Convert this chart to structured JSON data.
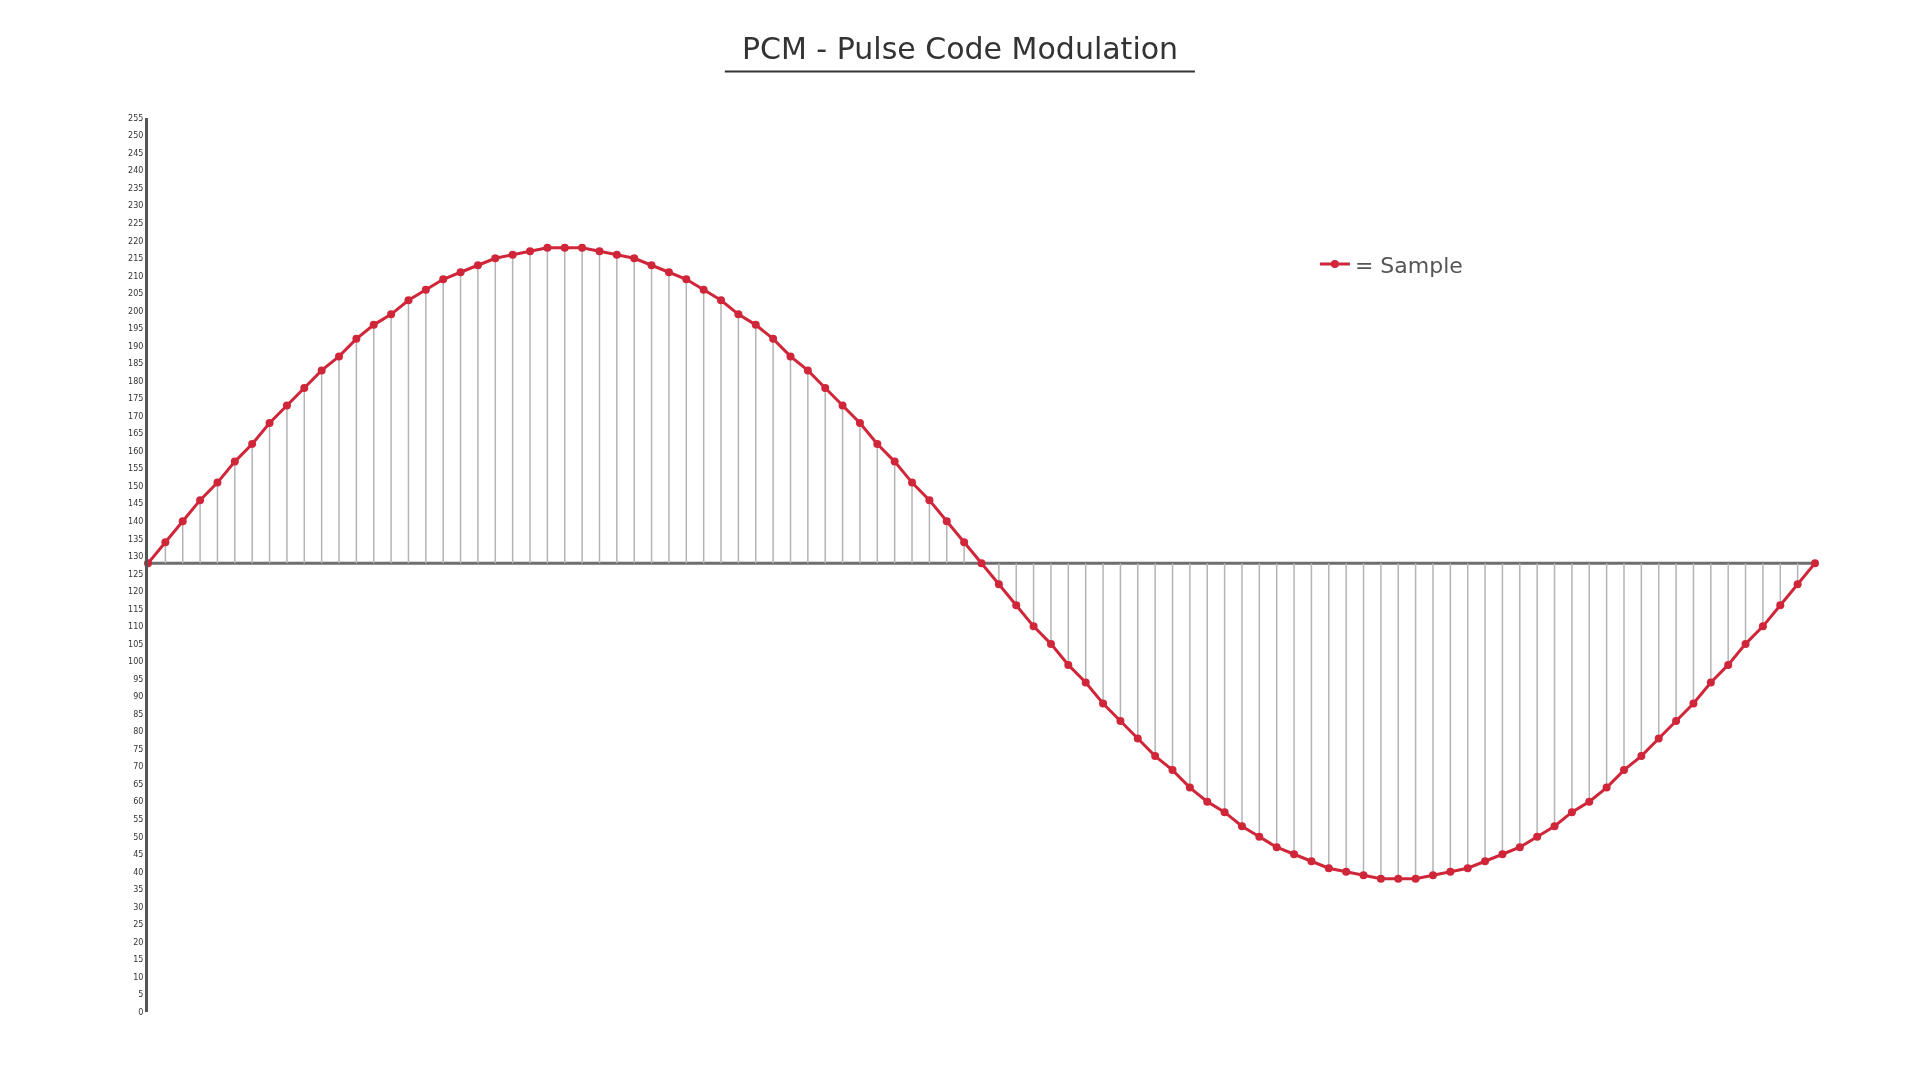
{
  "chart_data": {
    "type": "line",
    "title": "PCM - Pulse Code Modulation",
    "categories": [
      null,
      null,
      null,
      null,
      null,
      null,
      null,
      null,
      null,
      null,
      null,
      null,
      null,
      null,
      null,
      null,
      null,
      null,
      null,
      null,
      null,
      null,
      null,
      null,
      null,
      null,
      null,
      null,
      null,
      null,
      null,
      null,
      null,
      null,
      null,
      null,
      null,
      null,
      null,
      null,
      null,
      null,
      null,
      null,
      null,
      null,
      null,
      null,
      null,
      null,
      null,
      null,
      null,
      null,
      null,
      null,
      null,
      null,
      null,
      null,
      null,
      null,
      null,
      null,
      null,
      null,
      null,
      null,
      null,
      null,
      null,
      null,
      null,
      null,
      null,
      null,
      null,
      null,
      null,
      null,
      null,
      null,
      null,
      null,
      null,
      null,
      null,
      null,
      null,
      null,
      null,
      null,
      null,
      null,
      null,
      null,
      null
    ],
    "series": [
      {
        "name": "= Sample",
        "color": "#d0263a",
        "values": [
          128,
          134,
          140,
          146,
          151,
          157,
          162,
          168,
          173,
          178,
          183,
          187,
          192,
          196,
          199,
          203,
          206,
          209,
          211,
          213,
          215,
          216,
          217,
          218,
          218,
          218,
          217,
          216,
          215,
          213,
          211,
          209,
          206,
          203,
          199,
          196,
          192,
          187,
          183,
          178,
          173,
          168,
          162,
          157,
          151,
          146,
          140,
          134,
          128,
          122,
          116,
          110,
          105,
          99,
          94,
          88,
          83,
          78,
          73,
          69,
          64,
          60,
          57,
          53,
          50,
          47,
          45,
          43,
          41,
          40,
          39,
          38,
          38,
          38,
          39,
          40,
          41,
          43,
          45,
          47,
          50,
          53,
          57,
          60,
          64,
          69,
          73,
          78,
          83,
          88,
          94,
          99,
          105,
          110,
          116,
          122,
          128
        ],
        "errors": [
          [
            128,
            128
          ],
          [
            128,
            134
          ],
          [
            128,
            140
          ],
          [
            128,
            146
          ],
          [
            128,
            151
          ],
          [
            128,
            157
          ],
          [
            128,
            162
          ],
          [
            128,
            168
          ],
          [
            128,
            173
          ],
          [
            128,
            178
          ],
          [
            128,
            183
          ],
          [
            128,
            187
          ],
          [
            128,
            192
          ],
          [
            128,
            196
          ],
          [
            128,
            199
          ],
          [
            128,
            203
          ],
          [
            128,
            206
          ],
          [
            128,
            209
          ],
          [
            128,
            211
          ],
          [
            128,
            213
          ],
          [
            128,
            215
          ],
          [
            128,
            216
          ],
          [
            128,
            217
          ],
          [
            128,
            218
          ],
          [
            128,
            218
          ],
          [
            128,
            218
          ],
          [
            128,
            217
          ],
          [
            128,
            216
          ],
          [
            128,
            215
          ],
          [
            128,
            213
          ],
          [
            128,
            211
          ],
          [
            128,
            209
          ],
          [
            128,
            206
          ],
          [
            128,
            203
          ],
          [
            128,
            199
          ],
          [
            128,
            196
          ],
          [
            128,
            192
          ],
          [
            128,
            187
          ],
          [
            128,
            183
          ],
          [
            128,
            178
          ],
          [
            128,
            173
          ],
          [
            128,
            168
          ],
          [
            128,
            162
          ],
          [
            128,
            157
          ],
          [
            128,
            151
          ],
          [
            128,
            146
          ],
          [
            128,
            140
          ],
          [
            128,
            134
          ],
          [
            128,
            128
          ],
          [
            122,
            128
          ],
          [
            116,
            128
          ],
          [
            110,
            128
          ],
          [
            105,
            128
          ],
          [
            99,
            128
          ],
          [
            94,
            128
          ],
          [
            88,
            128
          ],
          [
            83,
            128
          ],
          [
            78,
            128
          ],
          [
            73,
            128
          ],
          [
            69,
            128
          ],
          [
            64,
            128
          ],
          [
            60,
            128
          ],
          [
            57,
            128
          ],
          [
            53,
            128
          ],
          [
            50,
            128
          ],
          [
            47,
            128
          ],
          [
            45,
            128
          ],
          [
            43,
            128
          ],
          [
            41,
            128
          ],
          [
            40,
            128
          ],
          [
            39,
            128
          ],
          [
            38,
            128
          ],
          [
            38,
            128
          ],
          [
            38,
            128
          ],
          [
            39,
            128
          ],
          [
            40,
            128
          ],
          [
            41,
            128
          ],
          [
            43,
            128
          ],
          [
            45,
            128
          ],
          [
            47,
            128
          ],
          [
            50,
            128
          ],
          [
            53,
            128
          ],
          [
            57,
            128
          ],
          [
            60,
            128
          ],
          [
            64,
            128
          ],
          [
            69,
            128
          ],
          [
            73,
            128
          ],
          [
            78,
            128
          ],
          [
            83,
            128
          ],
          [
            88,
            128
          ],
          [
            94,
            128
          ],
          [
            99,
            128
          ],
          [
            105,
            128
          ],
          [
            110,
            128
          ],
          [
            116,
            128
          ],
          [
            122,
            128
          ],
          [
            128,
            128
          ]
        ]
      }
    ],
    "ylim": [
      0,
      255
    ],
    "yticks": [
      0,
      5,
      10,
      15,
      20,
      25,
      30,
      35,
      40,
      45,
      50,
      55,
      60,
      65,
      70,
      75,
      80,
      85,
      90,
      95,
      100,
      105,
      110,
      115,
      120,
      125,
      130,
      135,
      140,
      145,
      150,
      155,
      160,
      165,
      170,
      175,
      180,
      185,
      190,
      195,
      200,
      205,
      210,
      215,
      220,
      225,
      230,
      235,
      240,
      245,
      250,
      255
    ],
    "ref_lines": [
      {
        "axis": "y",
        "value": 128,
        "color": "#6e6e6e"
      }
    ],
    "marker": "circle",
    "line_style": "solid",
    "legend": "top right",
    "tick_labels": "y"
  }
}
